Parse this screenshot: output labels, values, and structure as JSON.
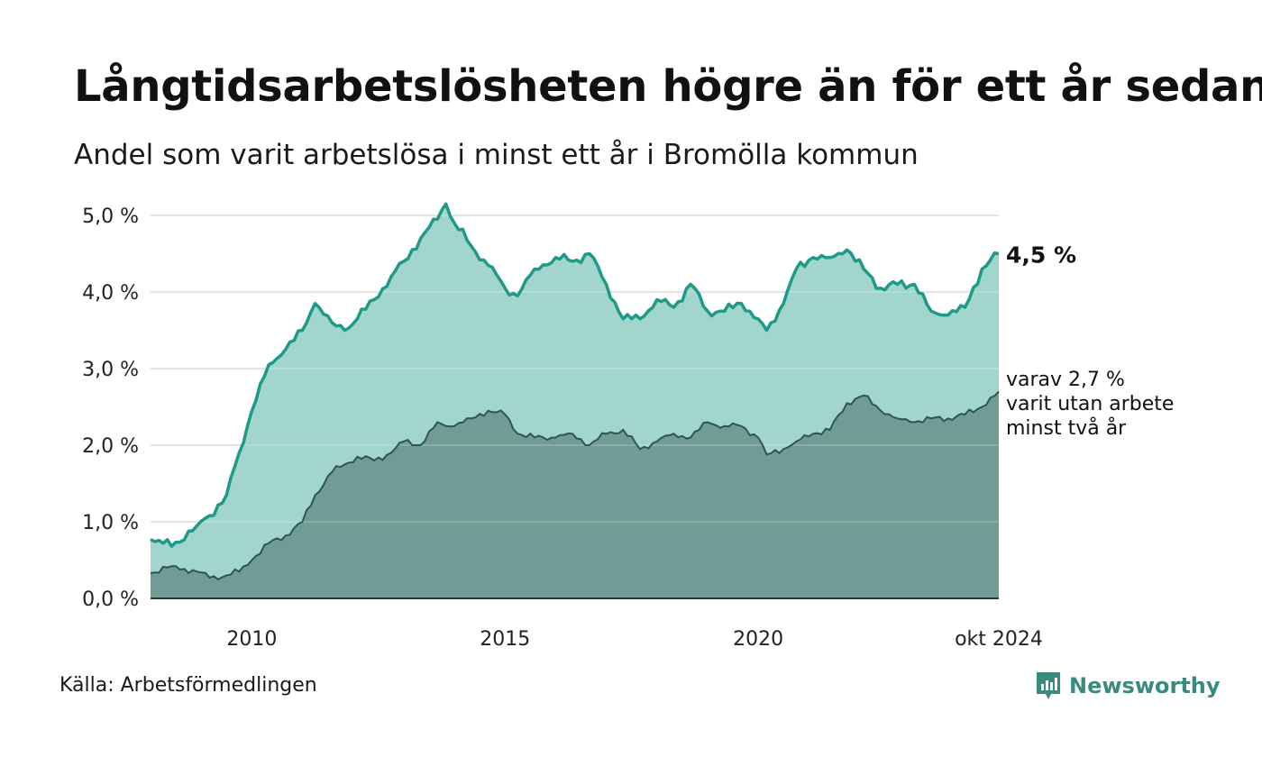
{
  "title": "Långtidsarbetslösheten högre än för ett år sedan",
  "subtitle": "Andel som varit arbetslösa i minst ett år i Bromölla kommun",
  "source": "Källa: Arbetsförmedlingen",
  "brand": {
    "name": "Newsworthy",
    "icon": "newsworthy-logo-icon",
    "color": "#3a8a80"
  },
  "colors": {
    "total_line": "#1f9a88",
    "total_area": "#a3d5cf",
    "long_line": "#2e5650",
    "long_area": "#719c95",
    "grid": "#dddddd",
    "axis": "#333333"
  },
  "chart_data": {
    "type": "area",
    "x_start": "2008-01",
    "x_end": "2024-10",
    "ylim": [
      0,
      5.2
    ],
    "y_ticks": [
      "0,0 %",
      "1,0 %",
      "2,0 %",
      "3,0 %",
      "4,0 %",
      "5,0 %"
    ],
    "x_ticks": [
      "2010",
      "2015",
      "2020",
      "okt 2024"
    ],
    "grid": true,
    "series": [
      {
        "name": "minst ett år",
        "end_label": "4,5 %",
        "points": [
          [
            "2008-01",
            0.77
          ],
          [
            "2008-06",
            0.68
          ],
          [
            "2008-12",
            0.95
          ],
          [
            "2009-03",
            1.08
          ],
          [
            "2009-07",
            1.35
          ],
          [
            "2009-10",
            1.9
          ],
          [
            "2010-01",
            2.45
          ],
          [
            "2010-05",
            3.05
          ],
          [
            "2010-09",
            3.25
          ],
          [
            "2011-01",
            3.5
          ],
          [
            "2011-04",
            3.85
          ],
          [
            "2011-08",
            3.6
          ],
          [
            "2011-11",
            3.5
          ],
          [
            "2012-02",
            3.65
          ],
          [
            "2012-06",
            3.9
          ],
          [
            "2012-10",
            4.2
          ],
          [
            "2013-01",
            4.4
          ],
          [
            "2013-05",
            4.7
          ],
          [
            "2013-09",
            4.95
          ],
          [
            "2013-11",
            5.15
          ],
          [
            "2014-01",
            4.9
          ],
          [
            "2014-05",
            4.6
          ],
          [
            "2014-09",
            4.35
          ],
          [
            "2015-01",
            4.05
          ],
          [
            "2015-04",
            3.95
          ],
          [
            "2015-08",
            4.3
          ],
          [
            "2016-01",
            4.45
          ],
          [
            "2016-05",
            4.4
          ],
          [
            "2016-09",
            4.5
          ],
          [
            "2017-01",
            4.1
          ],
          [
            "2017-05",
            3.65
          ],
          [
            "2017-09",
            3.65
          ],
          [
            "2018-01",
            3.9
          ],
          [
            "2018-05",
            3.8
          ],
          [
            "2018-09",
            4.1
          ],
          [
            "2019-01",
            3.75
          ],
          [
            "2019-05",
            3.75
          ],
          [
            "2019-09",
            3.85
          ],
          [
            "2020-01",
            3.65
          ],
          [
            "2020-03",
            3.5
          ],
          [
            "2020-07",
            3.85
          ],
          [
            "2020-10",
            4.3
          ],
          [
            "2021-02",
            4.45
          ],
          [
            "2021-06",
            4.45
          ],
          [
            "2021-10",
            4.55
          ],
          [
            "2022-02",
            4.3
          ],
          [
            "2022-06",
            4.05
          ],
          [
            "2022-10",
            4.1
          ],
          [
            "2023-02",
            4.1
          ],
          [
            "2023-06",
            3.75
          ],
          [
            "2023-10",
            3.7
          ],
          [
            "2024-02",
            3.8
          ],
          [
            "2024-06",
            4.3
          ],
          [
            "2024-10",
            4.5
          ]
        ]
      },
      {
        "name": "minst två år",
        "end_label": "varav 2,7 %\nvarit utan arbete\nminst två år",
        "points": [
          [
            "2008-01",
            0.33
          ],
          [
            "2008-06",
            0.42
          ],
          [
            "2008-12",
            0.35
          ],
          [
            "2009-03",
            0.27
          ],
          [
            "2009-07",
            0.3
          ],
          [
            "2009-10",
            0.35
          ],
          [
            "2010-01",
            0.5
          ],
          [
            "2010-05",
            0.72
          ],
          [
            "2010-09",
            0.82
          ],
          [
            "2011-01",
            1.0
          ],
          [
            "2011-04",
            1.35
          ],
          [
            "2011-08",
            1.65
          ],
          [
            "2011-11",
            1.75
          ],
          [
            "2012-02",
            1.85
          ],
          [
            "2012-06",
            1.8
          ],
          [
            "2012-10",
            1.9
          ],
          [
            "2013-01",
            2.05
          ],
          [
            "2013-05",
            2.0
          ],
          [
            "2013-09",
            2.3
          ],
          [
            "2013-11",
            2.25
          ],
          [
            "2014-01",
            2.25
          ],
          [
            "2014-05",
            2.35
          ],
          [
            "2014-09",
            2.45
          ],
          [
            "2015-01",
            2.4
          ],
          [
            "2015-04",
            2.15
          ],
          [
            "2015-08",
            2.1
          ],
          [
            "2016-01",
            2.1
          ],
          [
            "2016-05",
            2.15
          ],
          [
            "2016-09",
            2.0
          ],
          [
            "2017-01",
            2.15
          ],
          [
            "2017-05",
            2.2
          ],
          [
            "2017-09",
            1.95
          ],
          [
            "2018-01",
            2.05
          ],
          [
            "2018-05",
            2.15
          ],
          [
            "2018-09",
            2.1
          ],
          [
            "2019-01",
            2.3
          ],
          [
            "2019-05",
            2.25
          ],
          [
            "2019-09",
            2.25
          ],
          [
            "2020-01",
            2.1
          ],
          [
            "2020-03",
            1.88
          ],
          [
            "2020-07",
            1.95
          ],
          [
            "2020-10",
            2.05
          ],
          [
            "2021-02",
            2.15
          ],
          [
            "2021-06",
            2.2
          ],
          [
            "2021-10",
            2.55
          ],
          [
            "2022-02",
            2.65
          ],
          [
            "2022-06",
            2.45
          ],
          [
            "2022-10",
            2.35
          ],
          [
            "2023-02",
            2.3
          ],
          [
            "2023-06",
            2.35
          ],
          [
            "2023-10",
            2.35
          ],
          [
            "2024-02",
            2.4
          ],
          [
            "2024-06",
            2.5
          ],
          [
            "2024-10",
            2.7
          ]
        ]
      }
    ]
  }
}
